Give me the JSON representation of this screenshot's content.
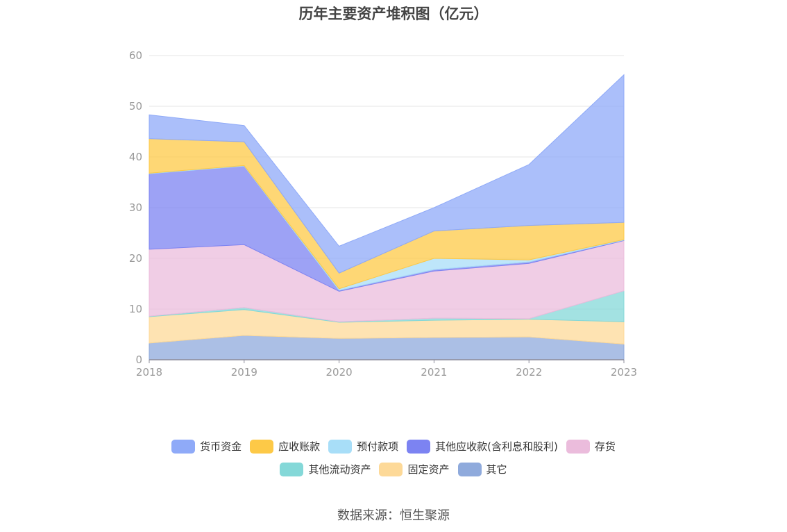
{
  "chart_data": {
    "type": "area",
    "stacked": true,
    "title": "历年主要资产堆积图（亿元）",
    "x": [
      "2018",
      "2019",
      "2020",
      "2021",
      "2022",
      "2023"
    ],
    "ylim": [
      0,
      60
    ],
    "yticks": [
      0,
      10,
      20,
      30,
      40,
      50,
      60
    ],
    "grid": true,
    "legend_position": "bottom",
    "series": [
      {
        "name": "其它",
        "color": "#8faadc",
        "values": [
          3.3,
          4.8,
          4.2,
          4.4,
          4.5,
          3.1
        ]
      },
      {
        "name": "固定资产",
        "color": "#fdd998",
        "values": [
          5.2,
          5.1,
          3.2,
          3.4,
          3.5,
          4.4
        ]
      },
      {
        "name": "其他流动资产",
        "color": "#84d8d8",
        "values": [
          0.1,
          0.4,
          0.1,
          0.4,
          0.1,
          6.1
        ]
      },
      {
        "name": "存货",
        "color": "#ebbcdc",
        "values": [
          13.2,
          12.4,
          6.0,
          9.3,
          10.9,
          9.9
        ]
      },
      {
        "name": "其他应收款(含利息和股利)",
        "color": "#7c83f2",
        "values": [
          14.9,
          15.5,
          0.2,
          0.3,
          0.3,
          0.1
        ]
      },
      {
        "name": "预付款项",
        "color": "#a8def8",
        "values": [
          0.1,
          0.1,
          0.3,
          2.2,
          0.4,
          0.1
        ]
      },
      {
        "name": "应收账款",
        "color": "#fdc947",
        "values": [
          6.8,
          4.7,
          3.1,
          5.4,
          6.8,
          3.4
        ]
      },
      {
        "name": "货币资金",
        "color": "#8faaf8",
        "values": [
          4.7,
          3.2,
          5.3,
          4.6,
          12.0,
          29.1
        ]
      }
    ],
    "legend_rows": [
      [
        "货币资金",
        "应收账款",
        "预付款项",
        "其他应收款(含利息和股利)",
        "存货"
      ],
      [
        "其他流动资产",
        "固定资产",
        "其它"
      ]
    ],
    "source": "数据来源：恒生聚源"
  }
}
